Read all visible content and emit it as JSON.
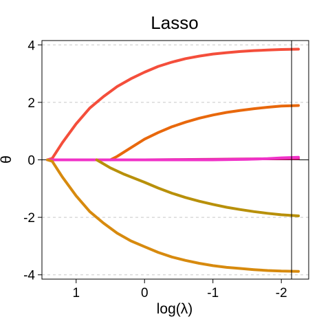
{
  "chart_data": {
    "type": "line",
    "title": "Lasso",
    "xlabel": "log(λ)",
    "ylabel": "θ",
    "x_reversed": true,
    "xlim": [
      1.5,
      -2.4
    ],
    "ylim": [
      -4.15,
      4.15
    ],
    "xticks": [
      1,
      0,
      -1,
      -2
    ],
    "xtick_labels": [
      "1",
      "0",
      "-1",
      "-2"
    ],
    "yticks": [
      4,
      2,
      0,
      -2,
      -4
    ],
    "ytick_labels": [
      "4",
      "2",
      "0",
      "-2",
      "-4"
    ],
    "grid": "horizontal dashed",
    "zero_line": 0,
    "vertical_marker_x": -2.15,
    "series": [
      {
        "color": "#f44e3b",
        "x": [
          1.42,
          1.35,
          1.2,
          1.0,
          0.8,
          0.6,
          0.4,
          0.2,
          0.0,
          -0.2,
          -0.4,
          -0.6,
          -0.8,
          -1.0,
          -1.2,
          -1.4,
          -1.6,
          -1.8,
          -2.0,
          -2.25
        ],
        "y": [
          0,
          0.05,
          0.6,
          1.25,
          1.8,
          2.2,
          2.55,
          2.82,
          3.05,
          3.25,
          3.4,
          3.52,
          3.61,
          3.68,
          3.73,
          3.77,
          3.8,
          3.82,
          3.84,
          3.85
        ]
      },
      {
        "color": "#e8680c",
        "x": [
          0.5,
          0.4,
          0.2,
          0.0,
          -0.2,
          -0.4,
          -0.6,
          -0.8,
          -1.0,
          -1.2,
          -1.4,
          -1.6,
          -1.8,
          -2.0,
          -2.25
        ],
        "y": [
          0,
          0.12,
          0.42,
          0.72,
          0.95,
          1.15,
          1.31,
          1.45,
          1.56,
          1.65,
          1.72,
          1.78,
          1.83,
          1.87,
          1.89
        ]
      },
      {
        "color": "#dd1c77",
        "x": [
          1.42,
          1.0,
          0.5,
          0.0,
          -0.5,
          -1.0,
          -1.5,
          -2.0,
          -2.25
        ],
        "y": [
          0,
          0,
          0,
          0,
          0.01,
          0.02,
          0.03,
          0.04,
          0.05
        ]
      },
      {
        "color": "#f032c8",
        "x": [
          1.42,
          1.0,
          0.5,
          0.0,
          -0.5,
          -1.0,
          -1.5,
          -1.8,
          -2.0,
          -2.25
        ],
        "y": [
          0,
          0,
          0,
          0,
          0,
          0,
          0.02,
          0.04,
          0.07,
          0.09
        ]
      },
      {
        "color": "#b8900a",
        "x": [
          0.7,
          0.5,
          0.3,
          0.0,
          -0.2,
          -0.4,
          -0.6,
          -0.8,
          -1.0,
          -1.2,
          -1.4,
          -1.6,
          -1.8,
          -2.0,
          -2.25
        ],
        "y": [
          0,
          -0.28,
          -0.5,
          -0.78,
          -0.98,
          -1.16,
          -1.31,
          -1.44,
          -1.55,
          -1.65,
          -1.73,
          -1.8,
          -1.86,
          -1.91,
          -1.95
        ]
      },
      {
        "color": "#d78a0e",
        "x": [
          1.42,
          1.35,
          1.2,
          1.0,
          0.8,
          0.6,
          0.4,
          0.2,
          0.0,
          -0.2,
          -0.4,
          -0.6,
          -0.8,
          -1.0,
          -1.2,
          -1.4,
          -1.6,
          -1.8,
          -2.0,
          -2.25
        ],
        "y": [
          0,
          -0.05,
          -0.6,
          -1.25,
          -1.8,
          -2.2,
          -2.55,
          -2.82,
          -3.02,
          -3.22,
          -3.38,
          -3.5,
          -3.6,
          -3.68,
          -3.74,
          -3.78,
          -3.82,
          -3.85,
          -3.87,
          -3.88
        ]
      }
    ]
  }
}
